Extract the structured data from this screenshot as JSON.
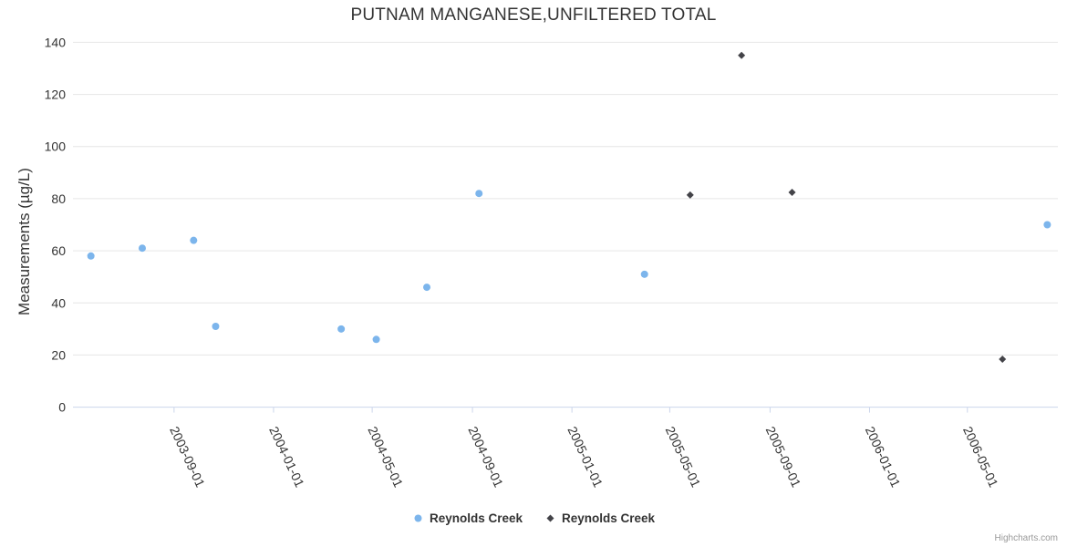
{
  "credit": "Highcharts.com",
  "colors": {
    "series_blue": "#7cb5ec",
    "series_dark": "#434348",
    "grid": "#e6e6e6",
    "axis_line": "#ccd6eb",
    "text": "#333333",
    "credit_text": "#999999",
    "background": "#ffffff"
  },
  "chart_data": {
    "type": "scatter",
    "title": "PUTNAM MANGANESE,UNFILTERED TOTAL",
    "xlabel": "",
    "ylabel": "Measurements (µg/L)",
    "ylim": [
      0,
      140
    ],
    "y_ticks": [
      0,
      20,
      40,
      60,
      80,
      100,
      120,
      140
    ],
    "x_axis_type": "datetime",
    "x_min": "2003-04-30",
    "x_max": "2006-08-20",
    "x_ticks": [
      {
        "date": "2003-09-01",
        "label": "2003-09-01"
      },
      {
        "date": "2004-01-01",
        "label": "2004-01-01"
      },
      {
        "date": "2004-05-01",
        "label": "2004-05-01"
      },
      {
        "date": "2004-09-01",
        "label": "2004-09-01"
      },
      {
        "date": "2005-01-01",
        "label": "2005-01-01"
      },
      {
        "date": "2005-05-01",
        "label": "2005-05-01"
      },
      {
        "date": "2005-09-01",
        "label": "2005-09-01"
      },
      {
        "date": "2006-01-01",
        "label": "2006-01-01"
      },
      {
        "date": "2006-05-01",
        "label": "2006-05-01"
      }
    ],
    "x_label_rotation": 65,
    "grid": "horizontal",
    "legend_position": "bottom-center",
    "series": [
      {
        "name": "Reynolds Creek",
        "marker": "circle",
        "color": "#7cb5ec",
        "points": [
          [
            "2003-05-22",
            58
          ],
          [
            "2003-07-24",
            61
          ],
          [
            "2003-09-25",
            64
          ],
          [
            "2003-10-22",
            31
          ],
          [
            "2004-03-24",
            30
          ],
          [
            "2004-05-06",
            26
          ],
          [
            "2004-07-07",
            46
          ],
          [
            "2004-09-09",
            82
          ],
          [
            "2005-03-31",
            51
          ],
          [
            "2006-08-07",
            70
          ]
        ]
      },
      {
        "name": "Reynolds Creek",
        "marker": "diamond",
        "color": "#434348",
        "points": [
          [
            "2005-05-26",
            81.4
          ],
          [
            "2005-07-28",
            135
          ],
          [
            "2005-09-28",
            82.4
          ],
          [
            "2006-06-13",
            18.4
          ]
        ]
      }
    ]
  }
}
